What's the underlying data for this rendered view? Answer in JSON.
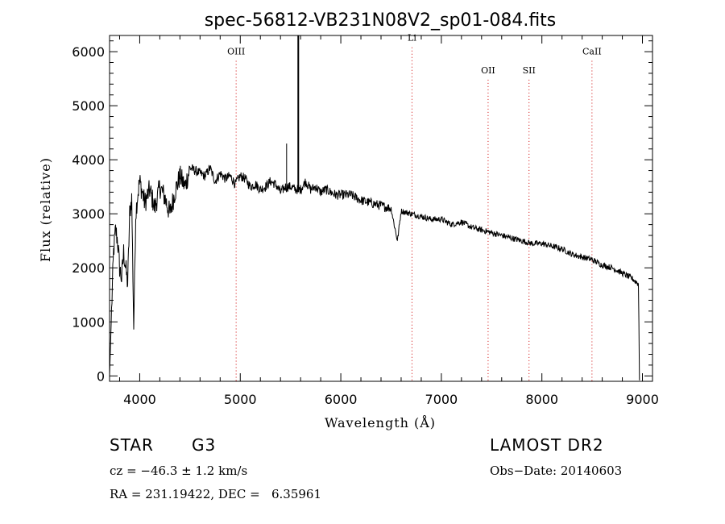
{
  "chart_data": {
    "type": "line",
    "title": "spec-56812-VB231N08V2_sp01-084.fits",
    "xlabel": "Wavelength (Å)",
    "ylabel": "Flux (relative)",
    "xlim": [
      3700,
      9100
    ],
    "ylim": [
      -100,
      6300
    ],
    "xticks": [
      4000,
      5000,
      6000,
      7000,
      8000,
      9000
    ],
    "yticks": [
      0,
      1000,
      2000,
      3000,
      4000,
      5000,
      6000
    ],
    "grid": false,
    "series": [
      {
        "x": [
          3700,
          3720,
          3740,
          3760,
          3780,
          3800,
          3820,
          3840,
          3860,
          3880,
          3900,
          3920,
          3940,
          3960,
          3980,
          4000,
          4050,
          4100,
          4150,
          4200,
          4250,
          4300,
          4350,
          4400,
          4450,
          4500,
          4550,
          4600,
          4650,
          4700,
          4750,
          4800,
          4850,
          4900,
          4950,
          5000,
          5050,
          5100,
          5150,
          5200,
          5250,
          5300,
          5350,
          5400,
          5450,
          5500,
          5550,
          5600,
          5650,
          5700,
          5750,
          5800,
          5850,
          5900,
          5950,
          6000,
          6100,
          6200,
          6300,
          6400,
          6500,
          6563,
          6600,
          6700,
          6800,
          6900,
          7000,
          7100,
          7200,
          7300,
          7400,
          7500,
          7600,
          7700,
          7800,
          7900,
          8000,
          8100,
          8200,
          8300,
          8400,
          8500,
          8600,
          8700,
          8800,
          8900,
          8960
        ],
        "y": [
          0,
          1200,
          2300,
          2700,
          2500,
          2000,
          1800,
          2300,
          2000,
          1700,
          3000,
          3300,
          900,
          3000,
          3350,
          3600,
          3200,
          3450,
          3100,
          3500,
          3300,
          3000,
          3400,
          3700,
          3500,
          3850,
          3800,
          3750,
          3700,
          3850,
          3600,
          3750,
          3650,
          3700,
          3550,
          3700,
          3650,
          3500,
          3550,
          3450,
          3500,
          3600,
          3550,
          3400,
          3500,
          3500,
          3450,
          3450,
          3600,
          3450,
          3500,
          3400,
          3450,
          3400,
          3350,
          3350,
          3350,
          3250,
          3200,
          3150,
          3100,
          2500,
          3050,
          3000,
          2950,
          2900,
          2900,
          2800,
          2850,
          2750,
          2700,
          2650,
          2600,
          2550,
          2500,
          2450,
          2450,
          2400,
          2350,
          2250,
          2200,
          2150,
          2050,
          2000,
          1900,
          1800,
          1700
        ]
      }
    ],
    "spikes": [
      {
        "x": 5461,
        "y": 4300
      },
      {
        "x": 5577,
        "y": 6300
      }
    ],
    "lines": [
      {
        "label": "OIII",
        "x": 4959,
        "label_y": 5950
      },
      {
        "label": "Li",
        "x": 6708,
        "label_y": 6200
      },
      {
        "label": "OII",
        "x": 7465,
        "label_y": 5600
      },
      {
        "label": "SII",
        "x": 7872,
        "label_y": 5600
      },
      {
        "label": "CaII",
        "x": 8498,
        "label_y": 5950
      }
    ],
    "line_color": "#d00000"
  },
  "info": {
    "obj_class": "STAR",
    "obj_subclass": "G3",
    "survey": "LAMOST DR2",
    "cz": "cz = −46.3 ± 1.2 km/s",
    "obs_date": "Obs−Date: 20140603",
    "radec": "RA = 231.19422, DEC =   6.35961"
  }
}
